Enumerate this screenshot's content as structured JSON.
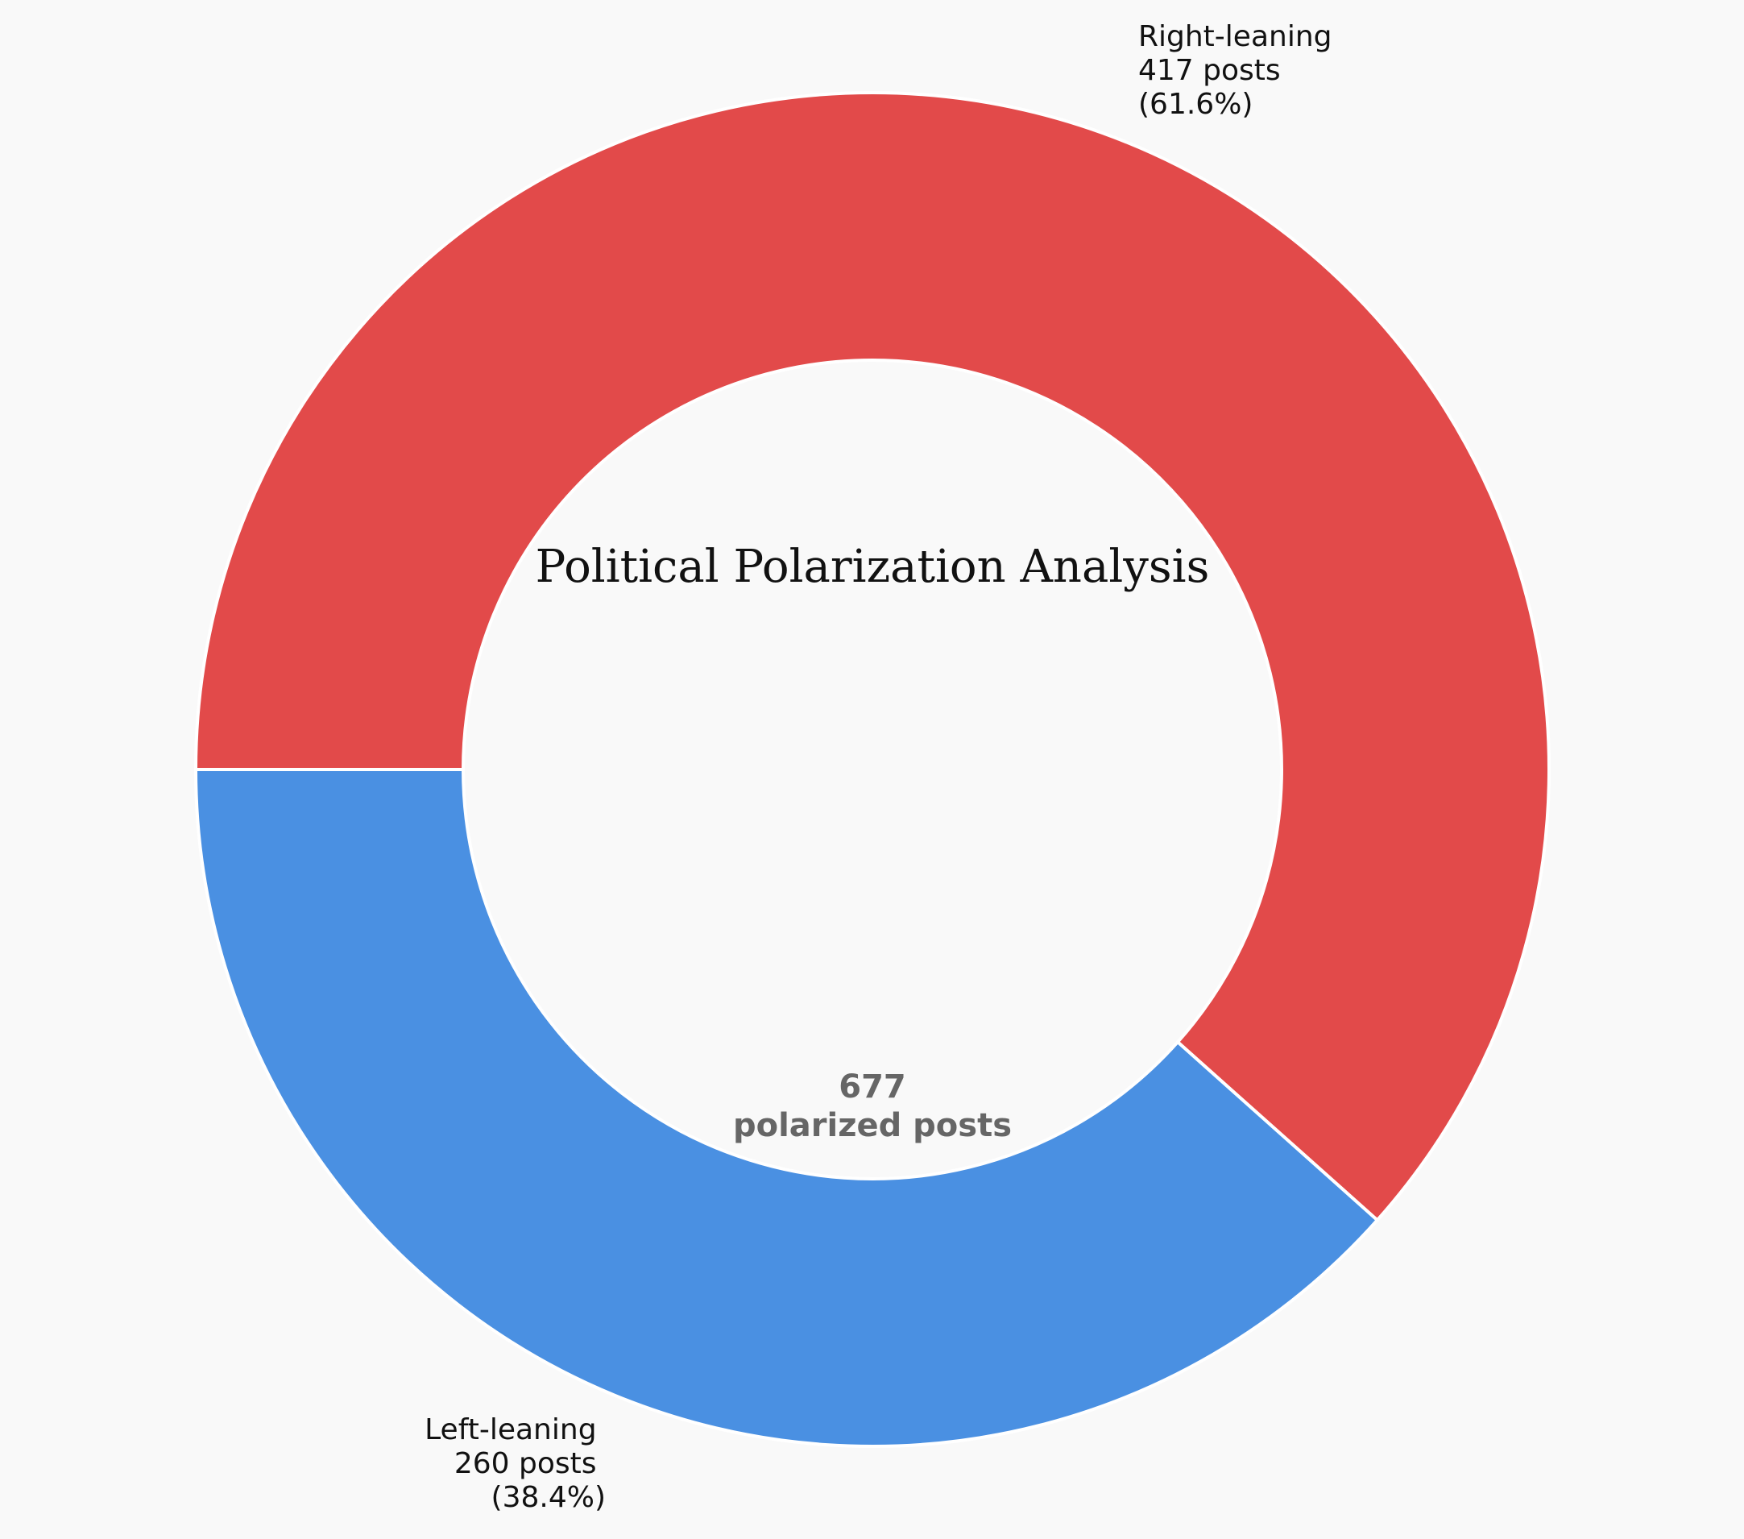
{
  "chart_data": {
    "type": "pie",
    "variant": "donut",
    "title": "Political Polarization Analysis",
    "slices": [
      {
        "name": "Right-leaning",
        "value": 417,
        "count_label": "417 posts",
        "percent_label": "(61.6%)",
        "color": "#e24a4a"
      },
      {
        "name": "Left-leaning",
        "value": 260,
        "count_label": "260 posts",
        "percent_label": "(38.4%)",
        "color": "#4a90e2"
      }
    ],
    "center": {
      "total": "677",
      "caption": "polarized posts"
    },
    "legend": "none",
    "grid": false
  },
  "colors": {
    "background": "#f9f9f9",
    "slice_edge": "#ffffff",
    "center_text": "#666666"
  }
}
